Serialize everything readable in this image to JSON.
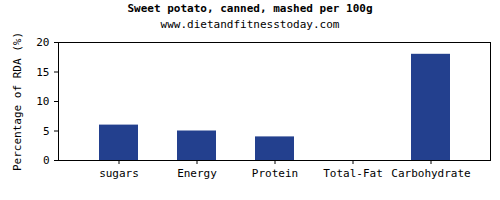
{
  "chart_data": {
    "type": "bar",
    "title": "Sweet potato, canned, mashed per 100g",
    "subtitle": "www.dietandfitnesstoday.com",
    "y_label": "Percentage of RDA (%)",
    "categories": [
      "sugars",
      "Energy",
      "Protein",
      "Total-Fat",
      "Carbohydrate"
    ],
    "values": [
      6,
      5,
      4,
      0,
      18
    ],
    "color": "#23408e",
    "ylim": [
      0,
      20
    ],
    "yticks": [
      0,
      5,
      10,
      15,
      20
    ],
    "grid": false
  }
}
